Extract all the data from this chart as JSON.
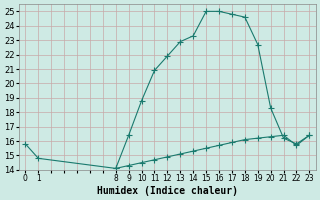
{
  "xlabel": "Humidex (Indice chaleur)",
  "bg_color": "#ceeae4",
  "line_color": "#1a7a6e",
  "grid_color": "#c8a8a8",
  "ylim": [
    14,
    25.5
  ],
  "yticks": [
    14,
    15,
    16,
    17,
    18,
    19,
    20,
    21,
    22,
    23,
    24,
    25
  ],
  "xtick_labels": [
    "0",
    "1",
    "",
    "",
    "",
    "",
    "",
    "8",
    "9",
    "10",
    "11",
    "12",
    "13",
    "14",
    "15",
    "16",
    "17",
    "18",
    "19",
    "20",
    "21",
    "22",
    "23"
  ],
  "main_xi": [
    0,
    1,
    7,
    8,
    9,
    10,
    11,
    12,
    13,
    14,
    15,
    16,
    17,
    18,
    19,
    20,
    21,
    22
  ],
  "main_y": [
    15.8,
    14.8,
    14.1,
    16.4,
    18.8,
    20.9,
    21.9,
    22.9,
    23.3,
    25.0,
    25.0,
    24.8,
    24.6,
    22.7,
    18.3,
    16.2,
    15.8,
    16.4
  ],
  "base_xi": [
    7,
    8,
    9,
    10,
    11,
    12,
    13,
    14,
    15,
    16,
    17,
    18,
    19,
    20,
    21,
    22
  ],
  "base_y": [
    14.1,
    14.3,
    14.5,
    14.7,
    14.9,
    15.1,
    15.3,
    15.5,
    15.7,
    15.9,
    16.1,
    16.2,
    16.3,
    16.4,
    15.7,
    16.4
  ],
  "n_ticks": 23,
  "marker": "+",
  "markersize": 4,
  "linewidth": 0.8
}
